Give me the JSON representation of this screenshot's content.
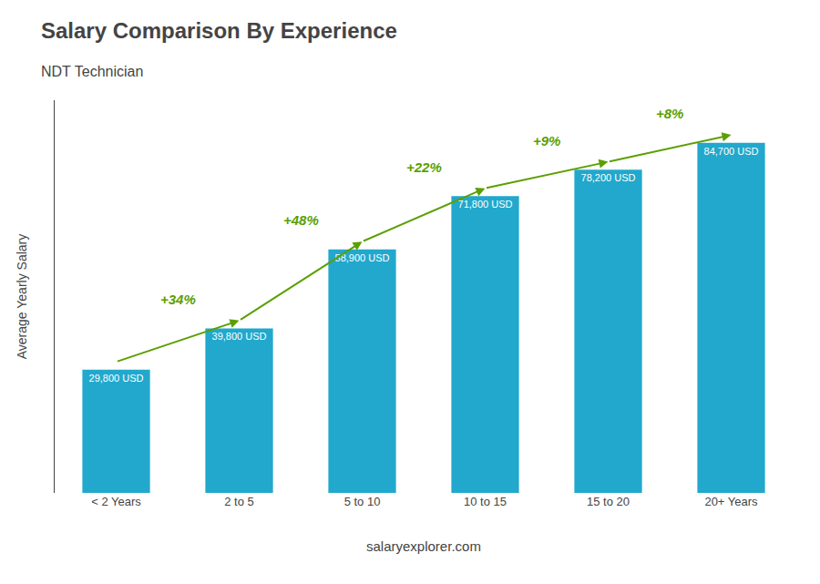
{
  "chart_data": {
    "type": "bar",
    "title": "Salary Comparison By Experience",
    "subtitle": "NDT Technician",
    "ylabel": "Average Yearly Salary",
    "categories": [
      "< 2 Years",
      "2 to 5",
      "5 to 10",
      "10 to 15",
      "15 to 20",
      "20+ Years"
    ],
    "values": [
      29800,
      39800,
      58900,
      71800,
      78200,
      84700
    ],
    "value_labels": [
      "29,800 USD",
      "39,800 USD",
      "58,900 USD",
      "71,800 USD",
      "78,200 USD",
      "84,700 USD"
    ],
    "data_labels": true,
    "annotations": [
      "+34%",
      "+48%",
      "+22%",
      "+9%",
      "+8%"
    ],
    "footer": "salaryexplorer.com",
    "color": "#22A8CC",
    "ylim": [
      0,
      95000
    ],
    "tick_labels": "x",
    "grid": false
  }
}
